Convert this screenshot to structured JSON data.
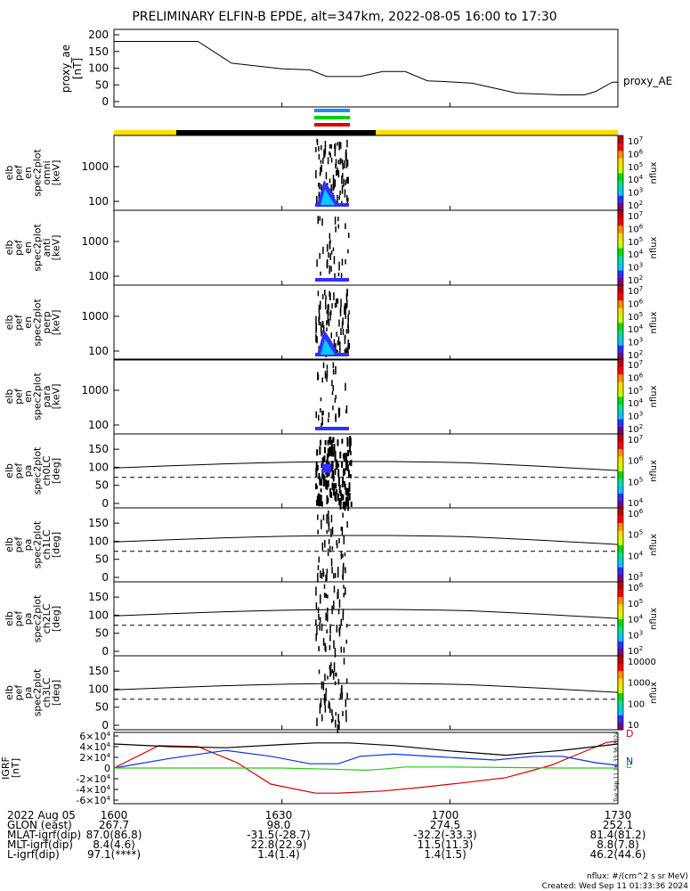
{
  "title": "PRELIMINARY ELFIN-B EPDE, alt=347km, 2022-08-05 16:00 to 17:30",
  "colors": {
    "bar_yellow": "#ffe000",
    "bar_black": "#000000",
    "marker_blue": "#1e8cff",
    "marker_green": "#00d000",
    "marker_red": "#e00000",
    "bx": "#000000",
    "by": "#1030e0",
    "bz": "#20cc10",
    "bt": "#d00000"
  },
  "colorbar_stops": [
    "#800080",
    "#3030ff",
    "#00c8ff",
    "#00e0a0",
    "#00e000",
    "#d0ff00",
    "#ffe000",
    "#ff9000",
    "#ff0000",
    "#c00000"
  ],
  "proxy": {
    "ylabel_lines": [
      "proxy_ae",
      "[nT]"
    ],
    "yticks": [
      "200",
      "150",
      "100",
      "50",
      "0"
    ],
    "series_label": "proxy_AE"
  },
  "energy_panels": [
    {
      "label_lines": [
        "elb",
        "pef",
        "en",
        "spec2plot",
        "omni",
        "[keV]"
      ],
      "yticks": [
        "1000",
        "100"
      ],
      "cb_label": "nflux",
      "cb_ticks": [
        "10^7",
        "10^6",
        "10^5",
        "10^4",
        "10^3",
        "10^2"
      ]
    },
    {
      "label_lines": [
        "elb",
        "pef",
        "en",
        "spec2plot",
        "anti",
        "[keV]"
      ],
      "yticks": [
        "1000",
        "100"
      ],
      "cb_label": "nflux",
      "cb_ticks": [
        "10^7",
        "10^6",
        "10^5",
        "10^4",
        "10^3",
        "10^2"
      ]
    },
    {
      "label_lines": [
        "elb",
        "pef",
        "en",
        "spec2plot",
        "perp",
        "[keV]"
      ],
      "yticks": [
        "1000",
        "100"
      ],
      "cb_label": "nflux",
      "cb_ticks": [
        "10^7",
        "10^6",
        "10^5",
        "10^4",
        "10^3",
        "10^2"
      ]
    },
    {
      "label_lines": [
        "elb",
        "pef",
        "en",
        "spec2plot",
        "para",
        "[keV]"
      ],
      "yticks": [
        "1000",
        "100"
      ],
      "cb_label": "nflux",
      "cb_ticks": [
        "10^7",
        "10^6",
        "10^5",
        "10^4",
        "10^3",
        "10^2"
      ]
    }
  ],
  "pa_panels": [
    {
      "label_lines": [
        "elb",
        "pef",
        "pa",
        "spec2plot",
        "ch0LC",
        "[deg]"
      ],
      "yticks": [
        "150",
        "100",
        "50",
        "0"
      ],
      "cb_label": "nflux",
      "cb_ticks": [
        "10^7",
        "10^6",
        "10^5",
        "10^4"
      ]
    },
    {
      "label_lines": [
        "elb",
        "pef",
        "pa",
        "spec2plot",
        "ch1LC",
        "[deg]"
      ],
      "yticks": [
        "150",
        "100",
        "50",
        "0"
      ],
      "cb_label": "nflux",
      "cb_ticks": [
        "10^6",
        "10^5",
        "10^4",
        "10^3"
      ]
    },
    {
      "label_lines": [
        "elb",
        "pef",
        "pa",
        "spec2plot",
        "ch2LC",
        "[deg]"
      ],
      "yticks": [
        "150",
        "100",
        "50",
        "0"
      ],
      "cb_label": "nflux",
      "cb_ticks": [
        "10^6",
        "10^5",
        "10^4",
        "10^3",
        "10^2"
      ]
    },
    {
      "label_lines": [
        "elb",
        "pef",
        "pa",
        "spec2plot",
        "ch3LC",
        "[deg]"
      ],
      "yticks": [
        "150",
        "100",
        "50",
        "0"
      ],
      "cb_label": "nflux",
      "cb_ticks": [
        "10000",
        "1000",
        "100",
        "10"
      ]
    }
  ],
  "igrf": {
    "ylabel_lines": [
      "IGRF",
      "[nT]"
    ],
    "yticks": [
      "6×10^4",
      "4×10^4",
      "2×10^4",
      "0",
      "-2×10^4",
      "-4×10^4",
      "-6×10^4"
    ],
    "legend": [
      "D",
      "N",
      "E"
    ],
    "side_text": "Tue Sep 11 16:33:36 2024"
  },
  "time_ticks": [
    "1600",
    "1630",
    "1700",
    "1730"
  ],
  "ephemeris": [
    {
      "label": "2022 Aug 05",
      "values": [
        "1600",
        "1630",
        "1700",
        "1730"
      ]
    },
    {
      "label": "GLON (east)",
      "values": [
        "267.7",
        "98.0",
        "274.5",
        "252.1"
      ]
    },
    {
      "label": "MLAT-igrf(dip)",
      "values": [
        "87.0(86.8)",
        "-31.5(-28.7)",
        "-32.2(-33.3)",
        "81.4(81.2)"
      ]
    },
    {
      "label": "MLT-igrf(dip)",
      "values": [
        "8.4(4.6)",
        "22.8(22.9)",
        "11.5(11.3)",
        "8.8(7.8)"
      ]
    },
    {
      "label": "L-igrf(dip)",
      "values": [
        "97.1(****)",
        "1.4(1.4)",
        "1.4(1.5)",
        "46.2(44.6)"
      ]
    }
  ],
  "footer": {
    "units": "nflux: #/(cm^2 s sr MeV)",
    "created": "Created: Wed Sep 11 01:33:36 2024"
  },
  "chart_data": {
    "type": "line",
    "title": "PRELIMINARY ELFIN-B EPDE, alt=347km, 2022-08-05 16:00 to 17:30",
    "x_range_min": [
      0,
      90
    ],
    "x_ticks": [
      "1600",
      "1630",
      "1700",
      "1730"
    ],
    "series": [
      {
        "name": "proxy_AE",
        "x": [
          0,
          15,
          21,
          30,
          35,
          38,
          44,
          48,
          52,
          56,
          59,
          64,
          72,
          80,
          84,
          86,
          89,
          90
        ],
        "y": [
          180,
          180,
          115,
          98,
          95,
          75,
          75,
          90,
          90,
          62,
          60,
          55,
          25,
          20,
          20,
          30,
          58,
          58
        ]
      }
    ],
    "igrf_series": [
      {
        "name": "D",
        "x": [
          0,
          8,
          15,
          22,
          28,
          36,
          40,
          48,
          55,
          62,
          70,
          78,
          85,
          88,
          90
        ],
        "y": [
          0,
          42000,
          40000,
          10000,
          -30000,
          -47000,
          -47000,
          -43000,
          -36000,
          -28000,
          -18000,
          5000,
          35000,
          48000,
          50000
        ]
      },
      {
        "name": "N",
        "x": [
          0,
          10,
          20,
          28,
          35,
          40,
          44,
          50,
          58,
          68,
          75,
          80,
          86,
          90
        ],
        "y": [
          0,
          18000,
          33000,
          22000,
          8000,
          8000,
          22000,
          26000,
          21000,
          15000,
          22000,
          22000,
          10000,
          5000
        ]
      },
      {
        "name": "E",
        "x": [
          0,
          30,
          38,
          45,
          48,
          52,
          60,
          70,
          80,
          90
        ],
        "y": [
          0,
          0,
          -2000,
          -4000,
          -2000,
          2000,
          2000,
          1000,
          0,
          0
        ]
      },
      {
        "name": "total",
        "x": [
          0,
          10,
          20,
          30,
          36,
          42,
          50,
          60,
          70,
          80,
          90
        ],
        "y": [
          45000,
          40000,
          38000,
          44000,
          47000,
          47000,
          42000,
          32000,
          24000,
          33000,
          45000
        ]
      }
    ],
    "ylim_proxy": [
      0,
      200
    ],
    "ylim_igrf": [
      -60000,
      60000
    ]
  }
}
